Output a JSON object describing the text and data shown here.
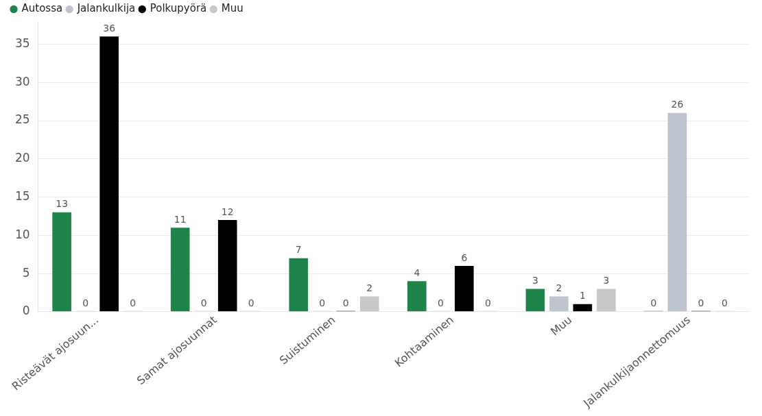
{
  "chart_data": {
    "type": "bar",
    "categories": [
      "Risteävät ajosuun...",
      "Samat ajosuunnat",
      "Suistuminen",
      "Kohtaaminen",
      "Muu",
      "Jalankulkijaonnettomuus"
    ],
    "series": [
      {
        "name": "Autossa",
        "color": "#1e8449",
        "values": [
          13,
          11,
          7,
          4,
          3,
          0
        ]
      },
      {
        "name": "Jalankulkija",
        "color": "#bec4cd",
        "values": [
          0,
          0,
          0,
          0,
          2,
          26
        ]
      },
      {
        "name": "Polkupyörä",
        "color": "#000000",
        "values": [
          36,
          12,
          0,
          6,
          1,
          0
        ]
      },
      {
        "name": "Muu",
        "color": "#c8c8c8",
        "values": [
          0,
          0,
          2,
          0,
          3,
          0
        ]
      }
    ],
    "ylim": [
      0,
      38
    ],
    "yticks": [
      0,
      5,
      10,
      15,
      20,
      25,
      30,
      35
    ],
    "grid": "y",
    "legend": "top left",
    "data_labels": true
  }
}
